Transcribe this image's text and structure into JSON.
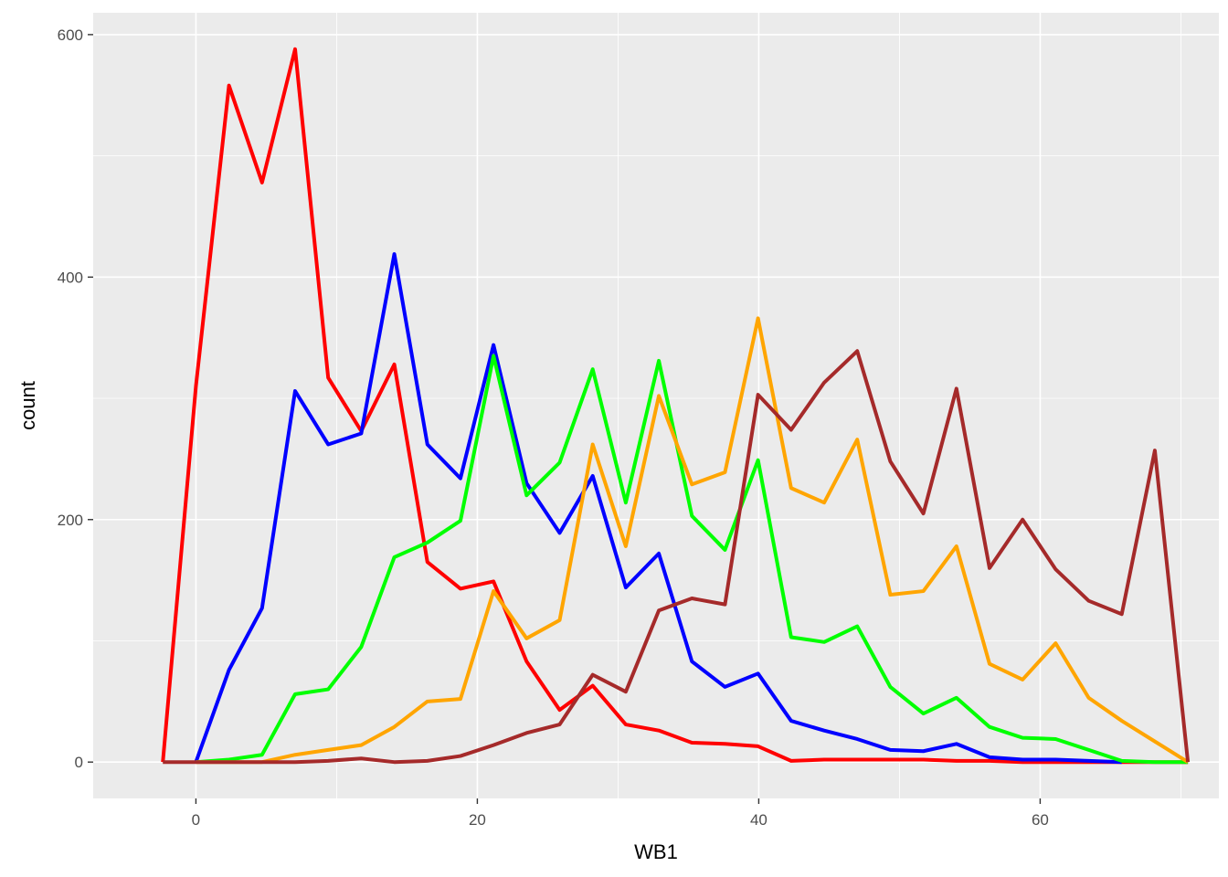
{
  "chart_data": {
    "type": "line",
    "title": "",
    "xlabel": "WB1",
    "ylabel": "count",
    "xlim": [
      -7.3,
      72.7
    ],
    "ylim": [
      -30,
      618
    ],
    "x_ticks": [
      0,
      20,
      40,
      60
    ],
    "y_ticks": [
      0,
      200,
      400,
      600
    ],
    "grid": true,
    "legend": "none",
    "x": [
      -2.35,
      0,
      2.35,
      4.7,
      7.05,
      9.4,
      11.75,
      14.1,
      16.45,
      18.8,
      21.15,
      23.5,
      25.85,
      28.2,
      30.55,
      32.9,
      35.25,
      37.6,
      39.95,
      42.3,
      44.65,
      47.0,
      49.35,
      51.7,
      54.05,
      56.4,
      58.75,
      61.1,
      63.45,
      65.8,
      68.15,
      70.5
    ],
    "series": [
      {
        "name": "red",
        "color": "#ff0000",
        "values": [
          0,
          310,
          558,
          478,
          588,
          317,
          273,
          328,
          165,
          143,
          149,
          83,
          43,
          63,
          31,
          26,
          16,
          15,
          13,
          1,
          2,
          2,
          2,
          2,
          1,
          1,
          0,
          0,
          0,
          0,
          0,
          0
        ]
      },
      {
        "name": "blue",
        "color": "#0000ff",
        "values": [
          null,
          0,
          76,
          127,
          306,
          262,
          271,
          419,
          262,
          234,
          344,
          230,
          189,
          236,
          144,
          172,
          83,
          62,
          73,
          34,
          26,
          19,
          10,
          9,
          15,
          4,
          2,
          2,
          1,
          0,
          null,
          null
        ]
      },
      {
        "name": "green",
        "color": "#00ff00",
        "values": [
          null,
          0,
          2,
          6,
          56,
          60,
          95,
          169,
          181,
          199,
          335,
          220,
          247,
          324,
          214,
          331,
          203,
          175,
          249,
          103,
          99,
          112,
          62,
          40,
          53,
          29,
          20,
          19,
          10,
          1,
          0,
          0
        ]
      },
      {
        "name": "orange",
        "color": "#ffa500",
        "values": [
          null,
          0,
          0,
          0,
          6,
          10,
          14,
          29,
          50,
          52,
          141,
          102,
          117,
          262,
          178,
          302,
          229,
          239,
          366,
          226,
          214,
          266,
          138,
          141,
          178,
          81,
          68,
          98,
          53,
          34,
          17,
          0
        ]
      },
      {
        "name": "brown",
        "color": "#a52a2a",
        "values": [
          0,
          0,
          0,
          0,
          0,
          1,
          3,
          0,
          1,
          5,
          14,
          24,
          31,
          72,
          58,
          125,
          135,
          130,
          303,
          274,
          313,
          339,
          248,
          205,
          308,
          160,
          200,
          159,
          133,
          122,
          257,
          0
        ]
      }
    ]
  }
}
